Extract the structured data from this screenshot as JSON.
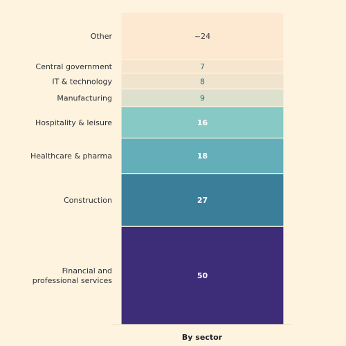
{
  "chart_data": {
    "type": "bar",
    "subtype": "stacked-single-column",
    "xlabel": "By sector",
    "categories": [
      "Financial and professional services",
      "Construction",
      "Healthcare & pharma",
      "Hospitality & leisure",
      "Manufacturing",
      "IT & technology",
      "Central government",
      "Other"
    ],
    "category_lines": [
      [
        "Financial and",
        "professional services"
      ],
      [
        "Construction"
      ],
      [
        "Healthcare & pharma"
      ],
      [
        "Hospitality & leisure"
      ],
      [
        "Manufacturing"
      ],
      [
        "IT & technology"
      ],
      [
        "Central government"
      ],
      [
        "Other"
      ]
    ],
    "values": [
      50,
      27,
      18,
      16,
      9,
      8,
      7,
      24
    ],
    "value_labels": [
      "50",
      "27",
      "18",
      "16",
      "9",
      "8",
      "7",
      "~24"
    ],
    "colors": [
      "#3d2c78",
      "#3b7e99",
      "#63aeb8",
      "#87c9c5",
      "#dde0cc",
      "#f0e4cf",
      "#f7e6cf",
      "#fde9d2"
    ],
    "label_colors": [
      "#ffffff",
      "#ffffff",
      "#ffffff",
      "#ffffff",
      "#2e6f7f",
      "#2e6f7f",
      "#2e6f7f",
      "#3a3a40"
    ],
    "label_bold": [
      true,
      true,
      true,
      true,
      false,
      false,
      false,
      false
    ],
    "stack_order": "bottom-to-top"
  }
}
